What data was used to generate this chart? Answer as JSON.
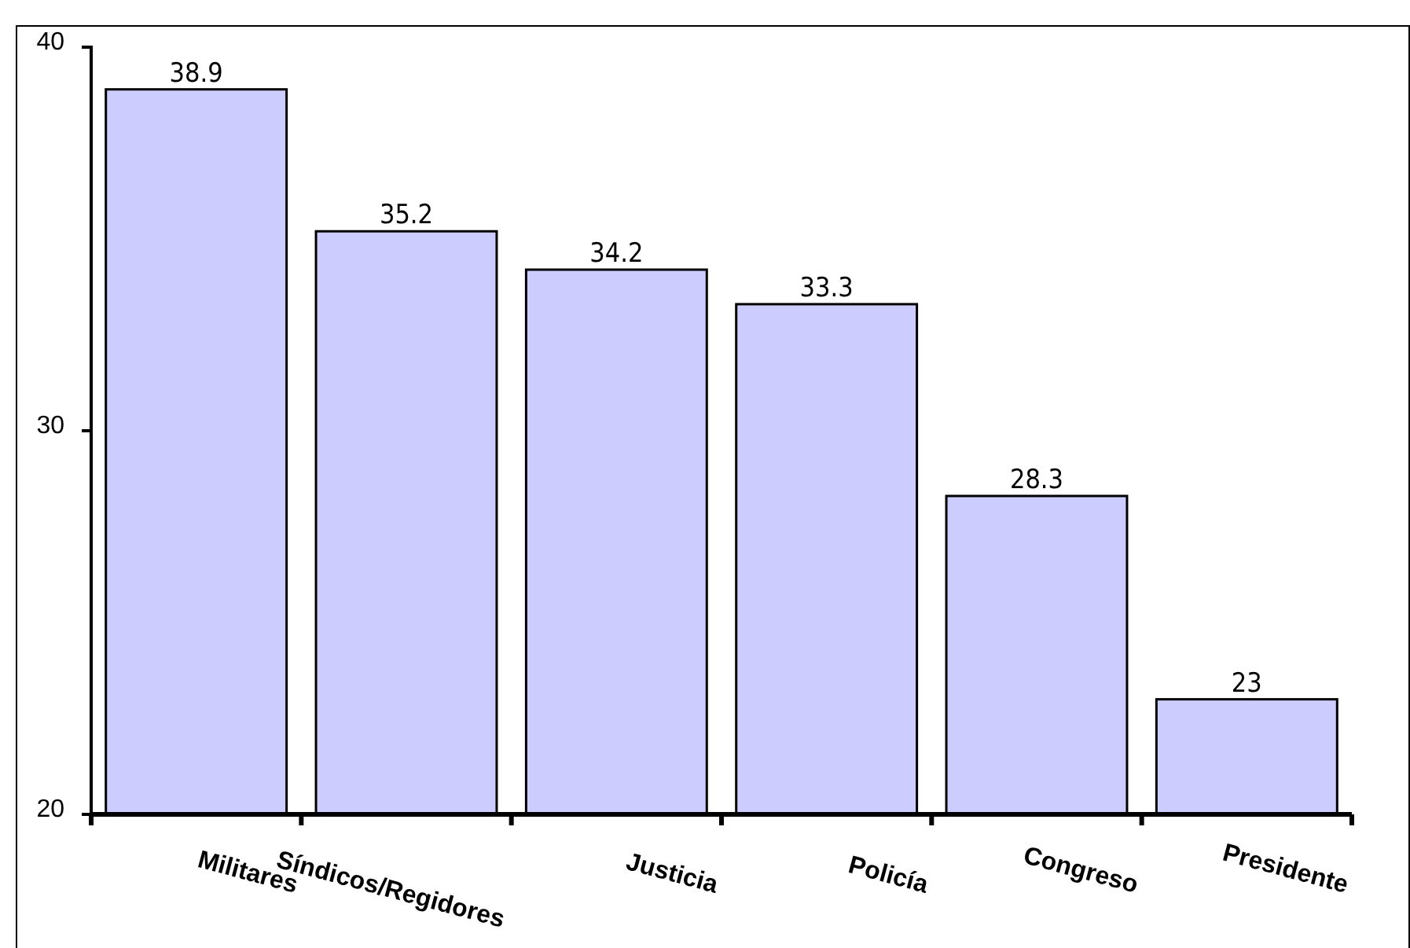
{
  "chart_data": {
    "type": "bar",
    "categories": [
      "Militares",
      "Síndicos/Regidores",
      "Justicia",
      "Policía",
      "Congreso",
      "Presidente"
    ],
    "values": [
      38.9,
      35.2,
      34.2,
      33.3,
      28.3,
      23
    ],
    "color": "#ccccff",
    "ylim": [
      20,
      40
    ],
    "yticks": [
      20,
      30,
      40
    ],
    "data_labels": true,
    "grid": false
  }
}
